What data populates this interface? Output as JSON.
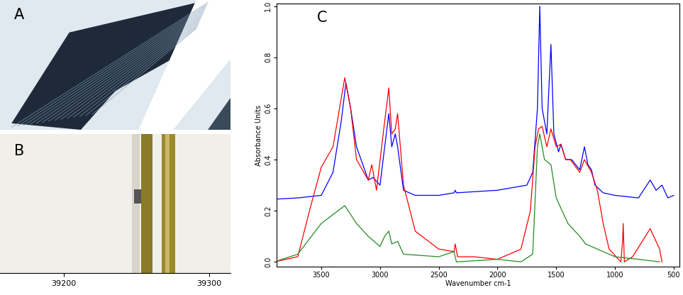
{
  "panels": [
    {
      "label": "A"
    },
    {
      "label": "B",
      "xlim": [
        39156,
        39315
      ],
      "xticks": [
        39200,
        39300
      ]
    }
  ],
  "chart_data": {
    "type": "line",
    "label": "C",
    "xlabel": "Wavenumber cm-1",
    "ylabel": "Absorbance Units",
    "xlim": [
      3880,
      450
    ],
    "xticks": [
      3500,
      3000,
      2500,
      2000,
      1500,
      1000,
      500
    ],
    "ylim": [
      -0.02,
      1.01
    ],
    "yticks": [
      {
        "value": 0,
        "label": "0.0"
      },
      0.2,
      0.4,
      0.6,
      0.8,
      {
        "value": 1,
        "label": "1.0"
      }
    ],
    "series": [
      {
        "color": "#0000ff",
        "x": [
          3900,
          3700,
          3500,
          3400,
          3330,
          3290,
          3250,
          3200,
          3100,
          3060,
          3000,
          2960,
          2925,
          2900,
          2870,
          2850,
          2800,
          2700,
          2500,
          2370,
          2360,
          2350,
          2000,
          1750,
          1700,
          1660,
          1640,
          1620,
          1580,
          1545,
          1520,
          1480,
          1460,
          1420,
          1370,
          1300,
          1260,
          1230,
          1200,
          1170,
          1100,
          1000,
          800,
          700,
          650,
          600,
          550,
          500
        ],
        "values": [
          0.245,
          0.25,
          0.26,
          0.35,
          0.55,
          0.7,
          0.6,
          0.45,
          0.32,
          0.33,
          0.3,
          0.45,
          0.58,
          0.45,
          0.5,
          0.45,
          0.28,
          0.26,
          0.26,
          0.27,
          0.28,
          0.27,
          0.28,
          0.3,
          0.35,
          0.6,
          1.0,
          0.6,
          0.5,
          0.85,
          0.5,
          0.43,
          0.46,
          0.4,
          0.4,
          0.36,
          0.45,
          0.38,
          0.36,
          0.3,
          0.27,
          0.26,
          0.25,
          0.32,
          0.28,
          0.3,
          0.25,
          0.26
        ]
      },
      {
        "color": "#ff0000",
        "x": [
          3900,
          3700,
          3600,
          3500,
          3400,
          3300,
          3250,
          3200,
          3100,
          3070,
          3030,
          2960,
          2925,
          2900,
          2870,
          2850,
          2800,
          2700,
          2500,
          2370,
          2360,
          2340,
          2200,
          2000,
          1800,
          1720,
          1680,
          1650,
          1620,
          1580,
          1545,
          1500,
          1460,
          1420,
          1380,
          1300,
          1260,
          1200,
          1150,
          1100,
          1050,
          950,
          935,
          930,
          920,
          850,
          700,
          620,
          600
        ],
        "values": [
          0.0,
          0.02,
          0.2,
          0.37,
          0.45,
          0.72,
          0.6,
          0.4,
          0.32,
          0.38,
          0.28,
          0.55,
          0.68,
          0.5,
          0.52,
          0.58,
          0.3,
          0.12,
          0.05,
          0.04,
          0.07,
          0.02,
          0.02,
          0.01,
          0.05,
          0.2,
          0.45,
          0.52,
          0.53,
          0.45,
          0.52,
          0.45,
          0.46,
          0.4,
          0.4,
          0.35,
          0.4,
          0.35,
          0.28,
          0.15,
          0.05,
          0.0,
          0.08,
          0.15,
          0.0,
          0.02,
          0.13,
          0.05,
          0.0
        ]
      },
      {
        "color": "#228b22",
        "x": [
          3900,
          3700,
          3500,
          3300,
          3200,
          3100,
          3000,
          2960,
          2925,
          2900,
          2850,
          2800,
          2500,
          2370,
          2350,
          2000,
          1800,
          1700,
          1660,
          1640,
          1600,
          1545,
          1500,
          1450,
          1400,
          1300,
          1250,
          1100,
          1000,
          800,
          620
        ],
        "values": [
          0.0,
          0.03,
          0.15,
          0.22,
          0.15,
          0.1,
          0.06,
          0.1,
          0.12,
          0.07,
          0.08,
          0.03,
          0.02,
          0.04,
          0.0,
          0.01,
          0.0,
          0.03,
          0.45,
          0.5,
          0.4,
          0.38,
          0.25,
          0.2,
          0.15,
          0.1,
          0.07,
          0.04,
          0.02,
          0.01,
          0.0
        ]
      }
    ]
  }
}
